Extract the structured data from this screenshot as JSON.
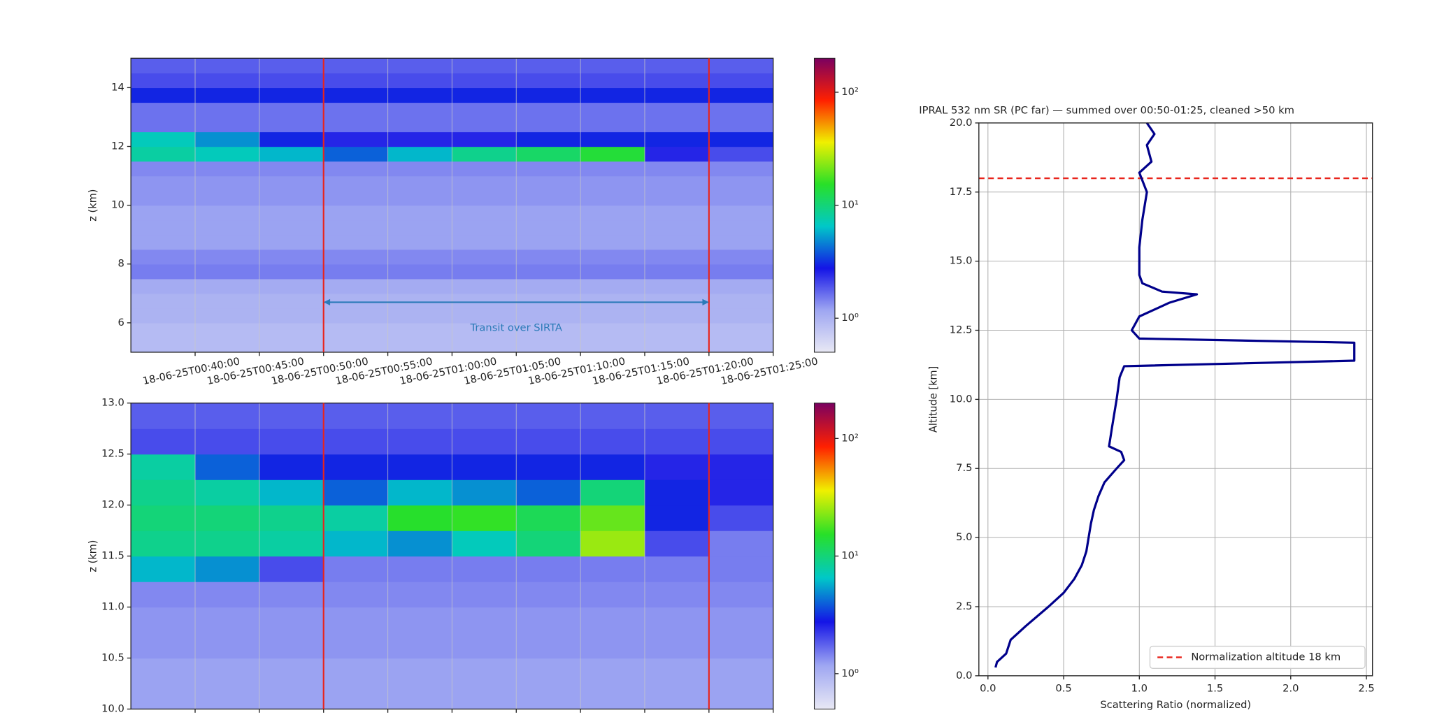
{
  "chart_data": [
    {
      "type": "heatmap",
      "ylabel": "z (km)",
      "xlim": [
        35,
        85
      ],
      "xticks": [
        {
          "value": 40,
          "label": "18-06-25T00:40:00"
        },
        {
          "value": 45,
          "label": "18-06-25T00:45:00"
        },
        {
          "value": 50,
          "label": "18-06-25T00:50:00"
        },
        {
          "value": 55,
          "label": "18-06-25T00:55:00"
        },
        {
          "value": 60,
          "label": "18-06-25T01:00:00"
        },
        {
          "value": 65,
          "label": "18-06-25T01:05:00"
        },
        {
          "value": 70,
          "label": "18-06-25T01:10:00"
        },
        {
          "value": 75,
          "label": "18-06-25T01:15:00"
        },
        {
          "value": 80,
          "label": "18-06-25T01:20:00"
        },
        {
          "value": 85,
          "label": "18-06-25T01:25:00"
        }
      ],
      "ylim": [
        5,
        15
      ],
      "yticks": [
        6,
        8,
        10,
        12,
        14
      ],
      "grid": true,
      "xbins": [
        35,
        40,
        45,
        50,
        55,
        60,
        65,
        70,
        75,
        80,
        85
      ],
      "ybins": [
        5,
        5.5,
        6,
        6.5,
        7,
        7.5,
        8,
        8.5,
        9,
        9.5,
        10,
        10.5,
        11,
        11.5,
        12,
        12.5,
        13,
        13.5,
        14,
        14.5,
        15
      ],
      "values": [
        [
          0.9,
          0.9,
          0.9,
          0.9,
          0.9,
          0.9,
          0.9,
          0.9,
          0.9,
          0.9
        ],
        [
          0.9,
          0.9,
          0.9,
          0.9,
          0.9,
          0.9,
          0.9,
          0.9,
          0.9,
          0.9
        ],
        [
          1.0,
          1.0,
          1.0,
          1.0,
          1.0,
          1.0,
          1.0,
          1.0,
          1.0,
          1.0
        ],
        [
          1.0,
          1.0,
          1.0,
          1.0,
          1.0,
          1.0,
          1.0,
          1.0,
          1.0,
          1.0
        ],
        [
          1.1,
          1.1,
          1.1,
          1.1,
          1.1,
          1.1,
          1.1,
          1.1,
          1.1,
          1.1
        ],
        [
          1.5,
          1.5,
          1.5,
          1.5,
          1.5,
          1.5,
          1.5,
          1.5,
          1.5,
          1.5
        ],
        [
          1.4,
          1.4,
          1.4,
          1.4,
          1.4,
          1.4,
          1.4,
          1.4,
          1.4,
          1.4
        ],
        [
          1.2,
          1.2,
          1.2,
          1.2,
          1.2,
          1.2,
          1.2,
          1.2,
          1.2,
          1.2
        ],
        [
          1.2,
          1.2,
          1.2,
          1.2,
          1.2,
          1.2,
          1.2,
          1.2,
          1.2,
          1.2
        ],
        [
          1.2,
          1.2,
          1.2,
          1.2,
          1.2,
          1.2,
          1.2,
          1.2,
          1.2,
          1.2
        ],
        [
          1.3,
          1.3,
          1.3,
          1.3,
          1.3,
          1.3,
          1.3,
          1.3,
          1.3,
          1.3
        ],
        [
          1.3,
          1.3,
          1.3,
          1.3,
          1.3,
          1.3,
          1.3,
          1.3,
          1.3,
          1.3
        ],
        [
          1.4,
          1.4,
          1.4,
          1.4,
          1.4,
          1.4,
          1.4,
          1.4,
          1.4,
          1.4
        ],
        [
          8,
          7,
          6,
          4,
          6,
          9,
          11,
          14,
          2.5,
          2
        ],
        [
          7,
          5,
          3,
          2.5,
          2.5,
          2.5,
          3,
          3,
          3,
          3
        ],
        [
          1.6,
          1.6,
          1.6,
          1.6,
          1.6,
          1.6,
          1.6,
          1.6,
          1.6,
          1.6
        ],
        [
          1.6,
          1.6,
          1.6,
          1.6,
          1.6,
          1.6,
          1.6,
          1.6,
          1.6,
          1.6
        ],
        [
          3,
          3,
          3,
          3,
          3,
          3,
          3,
          3,
          3,
          3
        ],
        [
          2,
          2,
          2,
          2,
          2,
          2,
          2,
          2,
          2,
          2
        ],
        [
          1.8,
          1.8,
          1.8,
          1.8,
          1.8,
          1.8,
          1.8,
          1.8,
          1.8,
          1.8
        ]
      ],
      "clim": [
        0.5,
        200
      ],
      "log_color": true,
      "cticks": [
        {
          "value": 1,
          "label": "10⁰"
        },
        {
          "value": 10,
          "label": "10¹"
        },
        {
          "value": 100,
          "label": "10²"
        }
      ],
      "colormap": [
        "#e8e8f4",
        "#9ea6f2",
        "#1414e6",
        "#00c8c8",
        "#28e028",
        "#f0f000",
        "#ff2000",
        "#7a0060"
      ],
      "vlines": [
        50,
        80
      ],
      "vline_color": "#e8241c",
      "annotation": {
        "text": "Transit over SIRTA",
        "x1": 50,
        "x2": 80,
        "y": 6.7,
        "color": "#2a7ab8"
      }
    },
    {
      "type": "heatmap",
      "ylabel": "z (km)",
      "xlim": [
        35,
        85
      ],
      "xticks": [
        40,
        45,
        50,
        55,
        60,
        65,
        70,
        75,
        80,
        85
      ],
      "ylim": [
        10,
        13
      ],
      "yticks": [
        {
          "value": 10,
          "label": "10.0"
        },
        {
          "value": 10.5,
          "label": "10.5"
        },
        {
          "value": 11,
          "label": "11.0"
        },
        {
          "value": 11.5,
          "label": "11.5"
        },
        {
          "value": 12,
          "label": "12.0"
        },
        {
          "value": 12.5,
          "label": "12.5"
        },
        {
          "value": 13,
          "label": "13.0"
        }
      ],
      "grid": true,
      "xbins": [
        35,
        40,
        45,
        50,
        55,
        60,
        65,
        70,
        75,
        80,
        85
      ],
      "ybins": [
        10,
        10.25,
        10.5,
        10.75,
        11,
        11.25,
        11.5,
        11.75,
        12,
        12.25,
        12.5,
        12.75,
        13
      ],
      "values": [
        [
          1.2,
          1.2,
          1.2,
          1.2,
          1.2,
          1.2,
          1.2,
          1.2,
          1.2,
          1.2
        ],
        [
          1.2,
          1.2,
          1.2,
          1.2,
          1.2,
          1.2,
          1.2,
          1.2,
          1.2,
          1.2
        ],
        [
          1.3,
          1.3,
          1.3,
          1.3,
          1.3,
          1.3,
          1.3,
          1.3,
          1.3,
          1.3
        ],
        [
          1.3,
          1.3,
          1.3,
          1.3,
          1.3,
          1.3,
          1.3,
          1.3,
          1.3,
          1.3
        ],
        [
          1.4,
          1.4,
          1.4,
          1.4,
          1.4,
          1.4,
          1.4,
          1.4,
          1.4,
          1.4
        ],
        [
          6,
          5,
          2,
          1.5,
          1.5,
          1.5,
          1.5,
          1.5,
          1.5,
          1.5
        ],
        [
          9,
          9,
          8,
          6,
          5,
          7,
          10,
          25,
          2,
          1.5
        ],
        [
          10,
          10,
          9,
          8,
          15,
          16,
          12,
          20,
          3,
          2
        ],
        [
          9,
          8,
          6,
          4,
          6,
          5,
          4,
          10,
          3,
          2.5
        ],
        [
          8,
          4,
          3,
          3,
          3,
          3,
          3,
          3,
          2.5,
          2.5
        ],
        [
          2,
          2,
          2,
          2,
          2,
          2,
          2,
          2,
          2,
          2
        ],
        [
          1.8,
          1.8,
          1.8,
          1.8,
          1.8,
          1.8,
          1.8,
          1.8,
          1.8,
          1.8
        ]
      ],
      "clim": [
        0.5,
        200
      ],
      "log_color": true,
      "cticks": [
        {
          "value": 1,
          "label": "10⁰"
        },
        {
          "value": 10,
          "label": "10¹"
        },
        {
          "value": 100,
          "label": "10²"
        }
      ],
      "colormap": [
        "#e8e8f4",
        "#9ea6f2",
        "#1414e6",
        "#00c8c8",
        "#28e028",
        "#f0f000",
        "#ff2000",
        "#7a0060"
      ],
      "vlines": [
        50,
        80
      ],
      "vline_color": "#e8241c"
    },
    {
      "type": "line",
      "title": "IPRAL 532 nm SR (PC far) — summed over 00:50-01:25, cleaned >50 km",
      "xlabel": "Scattering Ratio (normalized)",
      "ylabel": "Altitude [km]",
      "xlim": [
        -0.06,
        2.54
      ],
      "xticks": [
        {
          "value": 0,
          "label": "0.0"
        },
        {
          "value": 0.5,
          "label": "0.5"
        },
        {
          "value": 1,
          "label": "1.0"
        },
        {
          "value": 1.5,
          "label": "1.5"
        },
        {
          "value": 2,
          "label": "2.0"
        },
        {
          "value": 2.5,
          "label": "2.5"
        }
      ],
      "ylim": [
        0,
        20
      ],
      "yticks": [
        {
          "value": 0,
          "label": "0.0"
        },
        {
          "value": 2.5,
          "label": "2.5"
        },
        {
          "value": 5,
          "label": "5.0"
        },
        {
          "value": 7.5,
          "label": "7.5"
        },
        {
          "value": 10,
          "label": "10.0"
        },
        {
          "value": 12.5,
          "label": "12.5"
        },
        {
          "value": 15,
          "label": "15.0"
        },
        {
          "value": 17.5,
          "label": "17.5"
        },
        {
          "value": 20,
          "label": "20.0"
        }
      ],
      "grid": true,
      "legend": "lower right",
      "series": [
        {
          "color": "#00008b",
          "x": [
            0.05,
            0.06,
            0.12,
            0.15,
            0.25,
            0.4,
            0.5,
            0.57,
            0.62,
            0.65,
            0.68,
            0.7,
            0.73,
            0.77,
            0.85,
            0.9,
            0.88,
            0.8,
            0.82,
            0.85,
            0.87,
            0.9,
            2.42,
            2.42,
            1.0,
            0.95,
            1.0,
            1.2,
            1.38,
            1.15,
            1.02,
            1.0,
            1.0,
            1.02,
            1.05,
            1.0,
            1.08,
            1.05,
            1.1,
            1.05
          ],
          "y": [
            0.3,
            0.5,
            0.8,
            1.3,
            1.8,
            2.5,
            3.0,
            3.5,
            4.0,
            4.5,
            5.5,
            6.0,
            6.5,
            7.0,
            7.5,
            7.8,
            8.1,
            8.3,
            9.0,
            10.0,
            10.8,
            11.2,
            11.4,
            12.05,
            12.2,
            12.5,
            13.0,
            13.5,
            13.8,
            13.9,
            14.2,
            14.5,
            15.5,
            16.5,
            17.5,
            18.2,
            18.6,
            19.2,
            19.6,
            20.0
          ]
        }
      ],
      "hlines": [
        {
          "name": "Normalization altitude 18 km",
          "value": 18,
          "color": "#e8241c"
        }
      ]
    }
  ]
}
